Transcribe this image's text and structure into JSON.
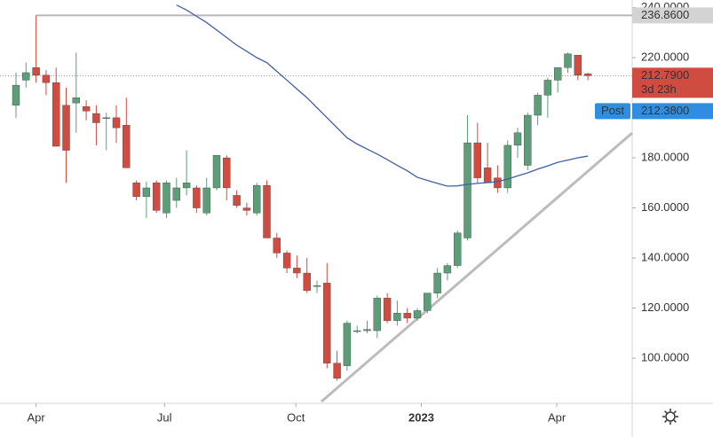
{
  "chart_data": {
    "type": "candlestick",
    "up_color": "#5b9e78",
    "down_color": "#d04b40",
    "open": [
      201,
      211,
      216,
      213,
      210,
      201,
      201.9,
      200.5,
      197.7,
      196,
      196,
      193,
      170,
      164.5,
      170,
      158,
      163,
      168,
      168,
      158,
      168,
      180,
      165,
      160,
      158,
      169,
      148,
      142,
      136,
      134,
      129,
      130,
      98,
      97,
      111,
      111,
      111,
      124,
      115,
      118,
      116,
      119,
      126,
      134,
      137,
      148,
      186,
      176,
      172,
      168,
      185,
      177,
      197,
      205,
      211,
      216,
      221,
      213.5
    ],
    "high": [
      214,
      218,
      236.86,
      215,
      216,
      208,
      222,
      203,
      201,
      198,
      201,
      204,
      171,
      170.5,
      171,
      171,
      172,
      183,
      169,
      172,
      181,
      181,
      167,
      162,
      170,
      171,
      150,
      143,
      141,
      140,
      131,
      138,
      103,
      115,
      113,
      115,
      125,
      126,
      123,
      120,
      120,
      126,
      136,
      138,
      151,
      197,
      194,
      186,
      177,
      187,
      192,
      198,
      206,
      212,
      216,
      222,
      221,
      214
    ],
    "low": [
      196,
      208,
      210,
      205,
      185,
      170,
      190,
      195,
      185,
      183,
      186,
      176,
      163,
      156,
      158,
      156,
      160,
      165,
      158,
      157,
      167,
      163,
      160,
      157,
      157,
      148,
      140,
      134,
      132,
      126,
      126,
      96,
      91,
      95,
      110,
      110,
      108,
      114,
      113,
      114,
      115,
      118,
      124,
      131,
      136,
      147,
      170,
      170,
      166,
      166,
      180,
      175,
      193,
      196,
      206,
      214,
      211,
      211
    ],
    "close": [
      209,
      214,
      213,
      210,
      184.6,
      183,
      204,
      198.7,
      194,
      196,
      192,
      176,
      164.5,
      168,
      159,
      170,
      168,
      170,
      160,
      168,
      181,
      168,
      161,
      159,
      169,
      148,
      142,
      136,
      134,
      127,
      129,
      98,
      92,
      114,
      111,
      111.5,
      124,
      115,
      118,
      116,
      119,
      126,
      134,
      137,
      150,
      186,
      172,
      170,
      168,
      185,
      190,
      197,
      205,
      211,
      216,
      221.5,
      213,
      212.79
    ],
    "ma": {
      "color": "#3f5fa8",
      "values": [
        null,
        null,
        null,
        null,
        null,
        null,
        null,
        null,
        null,
        null,
        null,
        null,
        null,
        null,
        null,
        null,
        241,
        239,
        236.5,
        234,
        231,
        228,
        225,
        222.5,
        220,
        218,
        214.5,
        211,
        207.5,
        204,
        200,
        196,
        192,
        188,
        185.5,
        183.5,
        181.5,
        179.3,
        177,
        174.8,
        172.2,
        171,
        169.8,
        168.7,
        168.8,
        169.4,
        169.8,
        170.1,
        170.5,
        171.5,
        172.8,
        174,
        175.5,
        176.8,
        178.2,
        179.1,
        180,
        180.7
      ]
    },
    "ylim": [
      82,
      243
    ],
    "yticks": [
      {
        "value": 100,
        "label": "100.0000"
      },
      {
        "value": 120,
        "label": "120.0000"
      },
      {
        "value": 140,
        "label": "140.0000"
      },
      {
        "value": 160,
        "label": "160.0000"
      },
      {
        "value": 180,
        "label": "180.0000"
      },
      {
        "value": 220,
        "label": "220.0000"
      },
      {
        "value": 240,
        "label": "240.0000"
      }
    ],
    "xticks": [
      {
        "value": 2,
        "label": "Apr"
      },
      {
        "value": 14.8,
        "label": "Jul"
      },
      {
        "value": 27.9,
        "label": "Oct"
      },
      {
        "value": 40.4,
        "label": "2023"
      },
      {
        "value": 53.9,
        "label": "Apr"
      }
    ],
    "hline": {
      "value": 236.86,
      "label": "236.8600",
      "color": "#b8b8b8"
    },
    "last_price": {
      "value": 212.79,
      "label": "212.7900",
      "countdown": "3d 23h",
      "color": "#d04b40"
    },
    "post": {
      "tag": "Post",
      "value": 212.38,
      "label": "212.3800",
      "color": "#2f8ee0"
    }
  }
}
